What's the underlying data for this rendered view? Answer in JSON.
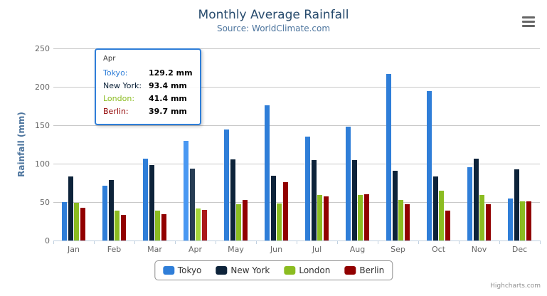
{
  "chart": {
    "title": "Monthly Average Rainfall",
    "subtitle": "Source: WorldClimate.com",
    "credits_label": "Highcharts.com"
  },
  "chart_data": {
    "type": "bar",
    "title": "Monthly Average Rainfall",
    "subtitle": "Source: WorldClimate.com",
    "xlabel": "",
    "ylabel": "Rainfall (mm)",
    "ylim": [
      0,
      250
    ],
    "yticks": [
      0,
      50,
      100,
      150,
      200,
      250
    ],
    "grid": true,
    "legend_position": "bottom",
    "categories": [
      "Jan",
      "Feb",
      "Mar",
      "Apr",
      "May",
      "Jun",
      "Jul",
      "Aug",
      "Sep",
      "Oct",
      "Nov",
      "Dec"
    ],
    "series": [
      {
        "name": "Tokyo",
        "color": "#2f7ed8",
        "values": [
          49.9,
          71.5,
          106.4,
          129.2,
          144.0,
          176.0,
          135.6,
          148.5,
          216.4,
          194.1,
          95.6,
          54.4
        ]
      },
      {
        "name": "New York",
        "color": "#0d233a",
        "values": [
          83.6,
          78.8,
          98.5,
          93.4,
          106.0,
          84.5,
          105.0,
          104.3,
          91.2,
          83.5,
          106.6,
          92.3
        ]
      },
      {
        "name": "London",
        "color": "#8bbc21",
        "values": [
          48.9,
          38.8,
          39.3,
          41.4,
          47.0,
          48.3,
          59.0,
          59.6,
          52.4,
          65.2,
          59.3,
          51.2
        ]
      },
      {
        "name": "Berlin",
        "color": "#910000",
        "values": [
          42.4,
          33.2,
          34.5,
          39.7,
          52.6,
          75.5,
          57.4,
          60.4,
          47.6,
          39.1,
          46.8,
          51.1
        ]
      }
    ],
    "unit": "mm",
    "highlighted_category": "Apr"
  },
  "tooltip": {
    "header": "Apr",
    "border_color": "#2f7ed8",
    "rows": [
      {
        "name": "Tokyo",
        "value": "129.2 mm",
        "color": "#2f7ed8"
      },
      {
        "name": "New York",
        "value": "93.4 mm",
        "color": "#0d233a"
      },
      {
        "name": "London",
        "value": "41.4 mm",
        "color": "#8bbc21"
      },
      {
        "name": "Berlin",
        "value": "39.7 mm",
        "color": "#910000"
      }
    ]
  },
  "legend": {
    "items": [
      "Tokyo",
      "New York",
      "London",
      "Berlin"
    ]
  },
  "icons": {
    "context_menu": "hamburger-menu-icon"
  }
}
